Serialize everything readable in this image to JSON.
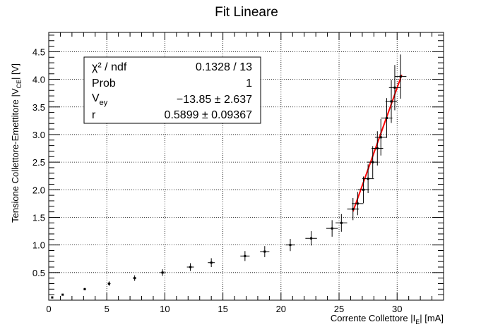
{
  "chart_data": {
    "type": "scatter",
    "title": "Fit Lineare",
    "xlabel": {
      "pre": "Corrente Collettore |I",
      "sub": "E",
      "post": "|   [mA]"
    },
    "ylabel": {
      "pre": "Tensione Collettore-Emettitore |V",
      "sub": "CE",
      "post": "|   [V]"
    },
    "xlim": [
      0,
      34
    ],
    "ylim": [
      0.0,
      4.85
    ],
    "grid": true,
    "x_ticks": [
      0,
      5,
      10,
      15,
      20,
      25,
      30
    ],
    "y_ticks": [
      0.5,
      1.0,
      1.5,
      2.0,
      2.5,
      3.0,
      3.5,
      4.0,
      4.5
    ],
    "points": [
      {
        "x": 0.3,
        "y": 0.05,
        "ex": 0.05,
        "ey": 0.01
      },
      {
        "x": 1.2,
        "y": 0.1,
        "ex": 0.08,
        "ey": 0.01
      },
      {
        "x": 3.1,
        "y": 0.2,
        "ex": 0.1,
        "ey": 0.02
      },
      {
        "x": 5.2,
        "y": 0.3,
        "ex": 0.12,
        "ey": 0.04
      },
      {
        "x": 7.4,
        "y": 0.4,
        "ex": 0.15,
        "ey": 0.05
      },
      {
        "x": 9.8,
        "y": 0.5,
        "ex": 0.2,
        "ey": 0.06
      },
      {
        "x": 12.2,
        "y": 0.6,
        "ex": 0.3,
        "ey": 0.07
      },
      {
        "x": 14.0,
        "y": 0.68,
        "ex": 0.3,
        "ey": 0.08
      },
      {
        "x": 16.9,
        "y": 0.8,
        "ex": 0.4,
        "ey": 0.09
      },
      {
        "x": 18.6,
        "y": 0.88,
        "ex": 0.4,
        "ey": 0.1
      },
      {
        "x": 20.8,
        "y": 1.0,
        "ex": 0.4,
        "ey": 0.11
      },
      {
        "x": 22.6,
        "y": 1.12,
        "ex": 0.5,
        "ey": 0.13
      },
      {
        "x": 24.4,
        "y": 1.3,
        "ex": 0.5,
        "ey": 0.15
      },
      {
        "x": 25.2,
        "y": 1.4,
        "ex": 0.5,
        "ey": 0.16
      },
      {
        "x": 26.2,
        "y": 1.65,
        "ex": 0.5,
        "ey": 0.2
      },
      {
        "x": 26.6,
        "y": 1.75,
        "ex": 0.5,
        "ey": 0.21
      },
      {
        "x": 27.1,
        "y": 2.0,
        "ex": 0.5,
        "ey": 0.24
      },
      {
        "x": 27.5,
        "y": 2.2,
        "ex": 0.5,
        "ey": 0.26
      },
      {
        "x": 27.9,
        "y": 2.5,
        "ex": 0.5,
        "ey": 0.29
      },
      {
        "x": 28.3,
        "y": 2.75,
        "ex": 0.5,
        "ey": 0.31
      },
      {
        "x": 28.6,
        "y": 2.95,
        "ex": 0.5,
        "ey": 0.33
      },
      {
        "x": 29.1,
        "y": 3.3,
        "ex": 0.5,
        "ey": 0.36
      },
      {
        "x": 29.5,
        "y": 3.6,
        "ex": 0.5,
        "ey": 0.39
      },
      {
        "x": 29.8,
        "y": 3.85,
        "ex": 0.5,
        "ey": 0.41
      },
      {
        "x": 30.3,
        "y": 4.05,
        "ex": 0.5,
        "ey": 0.4
      }
    ],
    "fit": {
      "x_range": [
        26.2,
        30.4
      ],
      "slope": 0.5899,
      "intercept": -13.85,
      "color": "#ff0000"
    },
    "stats_box": {
      "rows": [
        {
          "label": "χ² / ndf",
          "value": "0.1328 / 13"
        },
        {
          "label": "Prob",
          "value": "1"
        },
        {
          "label_pre": "V",
          "label_sub": "ey",
          "value": "−13.85 ± 2.637"
        },
        {
          "label": "r",
          "value": "0.5899 ± 0.09367"
        }
      ]
    }
  }
}
